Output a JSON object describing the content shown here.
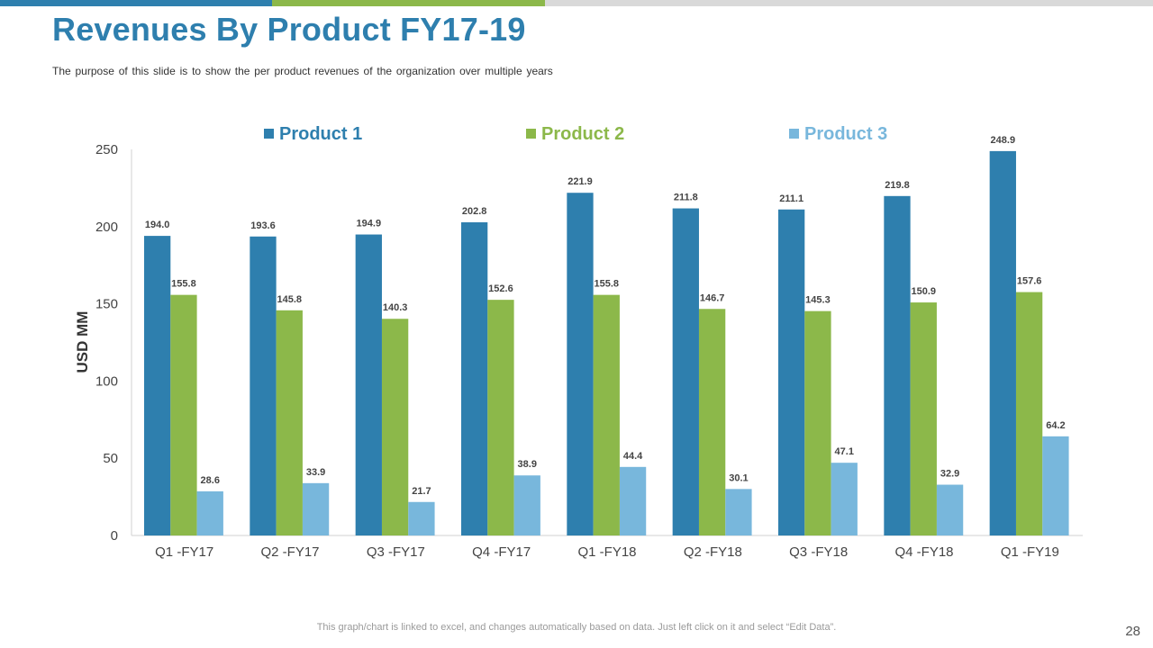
{
  "slide": {
    "title": "Revenues By Product FY17-19",
    "subtitle": "The purpose of this slide is to show the per product revenues of the organization over multiple years",
    "footer": "This graph/chart is linked to excel, and changes automatically based on data. Just left click on it and select “Edit Data”.",
    "page_number": "28"
  },
  "colors": {
    "product1": "#2e7fae",
    "product2": "#8cb84a",
    "product3": "#78b7dc",
    "title": "#2e7fae"
  },
  "chart_data": {
    "type": "bar",
    "title": "",
    "xlabel": "",
    "ylabel": "USD MM",
    "ylim": [
      0,
      250
    ],
    "yticks": [
      0,
      50,
      100,
      150,
      200,
      250
    ],
    "grid": false,
    "legend_position": "top",
    "categories": [
      "Q1 -FY17",
      "Q2 -FY17",
      "Q3 -FY17",
      "Q4 -FY17",
      "Q1 -FY18",
      "Q2 -FY18",
      "Q3 -FY18",
      "Q4 -FY18",
      "Q1 -FY19"
    ],
    "series": [
      {
        "name": "Product 1",
        "color": "#2e7fae",
        "values": [
          194.0,
          193.6,
          194.9,
          202.8,
          221.9,
          211.8,
          211.1,
          219.8,
          248.9
        ]
      },
      {
        "name": "Product 2",
        "color": "#8cb84a",
        "values": [
          155.8,
          145.8,
          140.3,
          152.6,
          155.8,
          146.7,
          145.3,
          150.9,
          157.6
        ]
      },
      {
        "name": "Product 3",
        "color": "#78b7dc",
        "values": [
          28.6,
          33.9,
          21.7,
          38.9,
          44.4,
          30.1,
          47.1,
          32.9,
          64.2
        ]
      }
    ]
  }
}
